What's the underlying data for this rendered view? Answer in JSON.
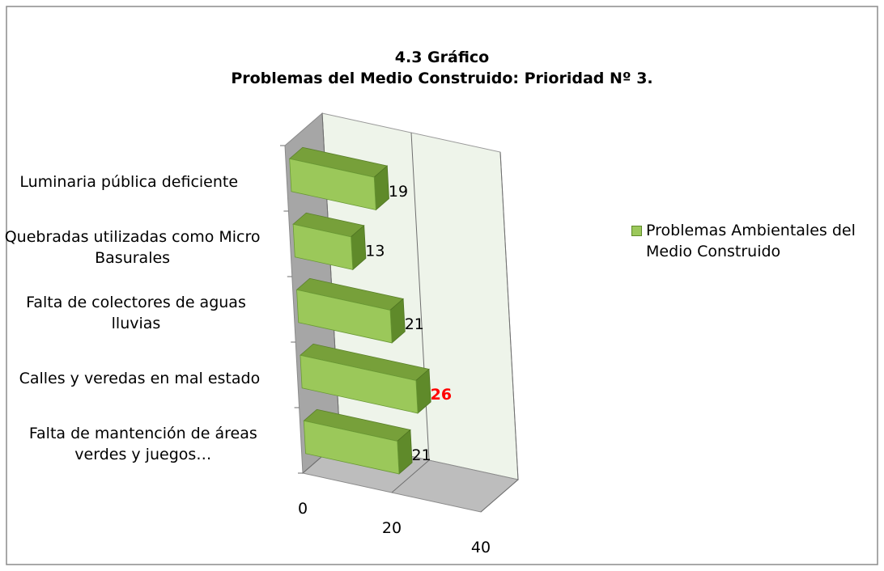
{
  "chart_data": {
    "type": "bar3d-horizontal",
    "title": "4.3 Gráfico",
    "subtitle": "Problemas del Medio Construido: Prioridad Nº 3.",
    "categories": [
      "Luminaria pública deficiente",
      "Quebradas utilizadas como Micro Basurales",
      "Falta de colectores de aguas lluvias",
      "Calles y veredas en mal estado",
      "Falta de mantención de áreas verdes y juegos…"
    ],
    "series": [
      {
        "name": "Problemas Ambientales del Medio Construido",
        "color": "#9bc85a",
        "values": [
          19,
          13,
          21,
          26,
          21
        ]
      }
    ],
    "value_label_colors": [
      "#000000",
      "#000000",
      "#000000",
      "#ff0000",
      "#000000"
    ],
    "xlim": [
      0,
      40
    ],
    "xticks": [
      0,
      20,
      40
    ],
    "grid": true,
    "legend": "right"
  }
}
